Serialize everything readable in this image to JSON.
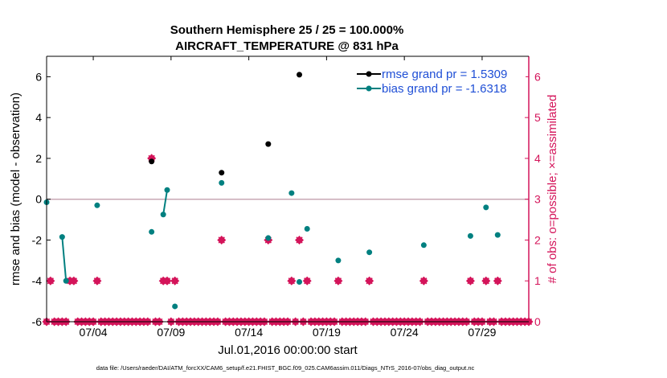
{
  "chart_data": {
    "type": "line",
    "title_line1": "Southern Hemisphere 25 / 25 = 100.000%",
    "title_line2": "AIRCRAFT_TEMPERATURE @ 831 hPa",
    "xlabel": "Jul.01,2016 00:00:00 start",
    "ylabel_left": "rmse and bias (model - observation)",
    "ylabel_right": "# of obs: o=possible; ×=assimilated",
    "footer": "data file: /Users/raeder/DAI/ATM_forcXX/CAM6_setup/f.e21.FHIST_BGC.f09_025.CAM6assim.011/Diags_NTrS_2016-07/obs_diag_output.nc",
    "xlim": [
      1.0,
      32.0
    ],
    "ylim_left": [
      -6,
      7
    ],
    "ylim_right": [
      0,
      6.5
    ],
    "xticks": [
      {
        "value": 4,
        "label": "07/04"
      },
      {
        "value": 9,
        "label": "07/09"
      },
      {
        "value": 14,
        "label": "07/14"
      },
      {
        "value": 19,
        "label": "07/19"
      },
      {
        "value": 24,
        "label": "07/24"
      },
      {
        "value": 29,
        "label": "07/29"
      }
    ],
    "yticks_left": [
      "-6",
      "-4",
      "-2",
      "0",
      "2",
      "4",
      "6"
    ],
    "yticks_left_values": [
      -6,
      -4,
      -2,
      0,
      2,
      4,
      6
    ],
    "yticks_right": [
      "0",
      "1",
      "2",
      "3",
      "4",
      "5",
      "6"
    ],
    "yticks_right_values": [
      0,
      1,
      2,
      3,
      4,
      5,
      6
    ],
    "zero_line": 0,
    "series": [
      {
        "name": "rmse",
        "legend": "rmse grand pr = 1.5309",
        "color": "#000000",
        "x": [
          7.75,
          12.25,
          15.25,
          17.25
        ],
        "values": [
          1.85,
          1.3,
          2.7,
          6.1
        ],
        "segments": []
      },
      {
        "name": "bias",
        "legend": "bias grand pr = -1.6318",
        "color": "#008080",
        "x": [
          1.0,
          2.0,
          2.25,
          4.25,
          7.75,
          8.5,
          8.75,
          9.25,
          12.25,
          15.25,
          16.75,
          17.25,
          17.75,
          19.75,
          21.75,
          25.25,
          28.25,
          29.25,
          30.0
        ],
        "values": [
          -0.15,
          -1.85,
          -4.0,
          -0.3,
          -1.6,
          -0.75,
          0.45,
          -5.25,
          0.8,
          -1.9,
          0.3,
          -4.05,
          -1.45,
          -3.0,
          -2.6,
          -2.25,
          -1.8,
          -0.4,
          -1.75
        ],
        "segments": [
          [
            1,
            2
          ],
          [
            5,
            6
          ]
        ]
      }
    ],
    "obs_possible": {
      "color": "#d4145a",
      "x": [
        1.0,
        1.25,
        1.5,
        1.75,
        2.0,
        2.25,
        2.5,
        2.75,
        3.0,
        3.25,
        3.5,
        3.75,
        4.0,
        4.25,
        4.5,
        4.75,
        5.0,
        5.25,
        5.5,
        5.75,
        6.0,
        6.25,
        6.5,
        6.75,
        7.0,
        7.25,
        7.5,
        7.75,
        8.0,
        8.25,
        8.5,
        8.75,
        9.0,
        9.25,
        9.5,
        9.75,
        10.0,
        10.25,
        10.5,
        10.75,
        11.0,
        11.25,
        11.5,
        11.75,
        12.0,
        12.25,
        12.5,
        12.75,
        13.0,
        13.25,
        13.5,
        13.75,
        14.0,
        14.25,
        14.5,
        14.75,
        15.0,
        15.25,
        15.5,
        15.75,
        16.0,
        16.25,
        16.5,
        16.75,
        17.0,
        17.25,
        17.5,
        17.75,
        18.0,
        18.25,
        18.5,
        18.75,
        19.0,
        19.25,
        19.5,
        19.75,
        20.0,
        20.25,
        20.5,
        20.75,
        21.0,
        21.25,
        21.5,
        21.75,
        22.0,
        22.25,
        22.5,
        22.75,
        23.0,
        23.25,
        23.5,
        23.75,
        24.0,
        24.25,
        24.5,
        24.75,
        25.0,
        25.25,
        25.5,
        25.75,
        26.0,
        26.25,
        26.5,
        26.75,
        27.0,
        27.25,
        27.5,
        27.75,
        28.0,
        28.25,
        28.5,
        28.75,
        29.0,
        29.25,
        29.5,
        29.75,
        30.0,
        30.25,
        30.5,
        30.75,
        31.0,
        31.25,
        31.5,
        31.75,
        32.0
      ],
      "values": [
        0,
        1,
        0,
        0,
        0,
        0,
        1,
        1,
        0,
        0,
        0,
        0,
        0,
        1,
        0,
        0,
        0,
        0,
        0,
        0,
        0,
        0,
        0,
        0,
        0,
        0,
        0,
        4,
        0,
        0,
        1,
        1,
        0,
        1,
        0,
        0,
        0,
        0,
        0,
        0,
        0,
        0,
        0,
        0,
        0,
        2,
        0,
        0,
        0,
        0,
        0,
        0,
        0,
        0,
        0,
        0,
        0,
        2,
        0,
        0,
        0,
        0,
        0,
        1,
        0,
        2,
        0,
        1,
        0,
        0,
        0,
        0,
        0,
        0,
        0,
        1,
        0,
        0,
        0,
        0,
        0,
        0,
        0,
        1,
        0,
        0,
        0,
        0,
        0,
        0,
        0,
        0,
        0,
        0,
        0,
        0,
        0,
        1,
        0,
        0,
        0,
        0,
        0,
        0,
        0,
        0,
        0,
        0,
        0,
        1,
        0,
        0,
        0,
        1,
        0,
        0,
        1,
        0,
        0,
        0,
        0,
        0,
        0,
        0,
        0
      ]
    }
  }
}
